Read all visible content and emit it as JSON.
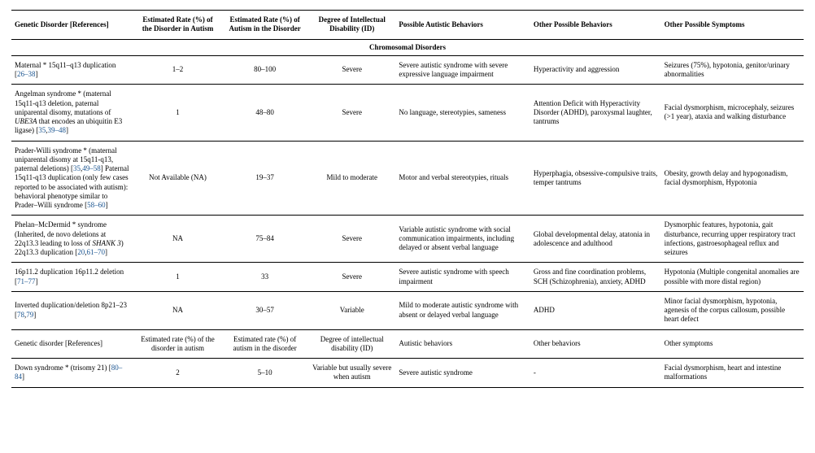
{
  "columns": [
    "Genetic Disorder\n[References]",
    "Estimated Rate (%)\nof the Disorder in\nAutism",
    "Estimated Rate (%)\nof Autism in the\nDisorder",
    "Degree of\nIntellectual\nDisability (ID)",
    "Possible Autistic Behaviors",
    "Other Possible Behaviors",
    "Other Possible Symptoms"
  ],
  "section": "Chromosomal Disorders",
  "rows": [
    {
      "disorder_html": "Maternal * 15q11–q13 duplication [<span class='ref'>26–38</span>]",
      "rate_in_autism": "1–2",
      "autism_in_disorder": "80–100",
      "id": "Severe",
      "autistic_behaviors": "Severe autistic syndrome with severe expressive language impairment",
      "other_behaviors": "Hyperactivity and aggression",
      "other_symptoms": "Seizures (75%), hypotonia, genitor/urinary abnormalities"
    },
    {
      "disorder_html": "Angelman syndrome * (maternal 15q11-q13 deletion, paternal uniparental disomy, mutations of <em>UBE3A</em> that encodes an ubiquitin E3 ligase) [<span class='ref'>35</span>,<span class='ref'>39–48</span>]",
      "rate_in_autism": "1",
      "autism_in_disorder": "48–80",
      "id": "Severe",
      "autistic_behaviors": "No language, stereotypies, sameness",
      "other_behaviors": "Attention Deficit with Hyperactivity Disorder (ADHD), paroxysmal laughter, tantrums",
      "other_symptoms": "Facial dysmorphism, microcephaly, seizures (>1 year), ataxia and walking disturbance"
    },
    {
      "disorder_html": "Prader-Willi syndrome * (maternal uniparental disomy at 15q11-q13, paternal deletions) [<span class='ref'>35</span>,<span class='ref'>49–58</span>] Paternal 15q11-q13 duplication (only few cases reported to be associated with autism): behavioral phenotype similar to Prader–Willi syndrome [<span class='ref'>58–60</span>]",
      "rate_in_autism": "Not Available (NA)",
      "autism_in_disorder": "19–37",
      "id": "Mild to moderate",
      "autistic_behaviors": "Motor and verbal stereotypies, rituals",
      "other_behaviors": "Hyperphagia, obsessive-compulsive traits, temper tantrums",
      "other_symptoms": "Obesity, growth delay and hypogonadism, facial dysmorphism, Hypotonia"
    },
    {
      "disorder_html": "Phelan–McDermid * syndrome (Inherited, de novo deletions at 22q13.3 leading to loss of <em>SHANK 3</em>) 22q13.3 duplication [<span class='ref'>20</span>,<span class='ref'>61–70</span>]",
      "rate_in_autism": "NA",
      "autism_in_disorder": "75–84",
      "id": "Severe",
      "autistic_behaviors": "Variable autistic syndrome with social communication impairments, including delayed or absent verbal language",
      "other_behaviors": "Global developmental delay, atatonia in adolescence and adulthood",
      "other_symptoms": "Dysmorphic features, hypotonia, gait disturbance, recurring upper respiratory tract infections, gastroesophageal reflux and seizures"
    },
    {
      "disorder_html": "16p11.2 duplication 16p11.2 deletion [<span class='ref'>71–77</span>]",
      "rate_in_autism": "1",
      "autism_in_disorder": "33",
      "id": "Severe",
      "autistic_behaviors": "Severe autistic syndrome with speech impairment",
      "other_behaviors": "Gross and fine coordination problems, SCH (Schizophrenia), anxiety, ADHD",
      "other_symptoms": "Hypotonia (Multiple congenital anomalies are possible with more distal region)"
    },
    {
      "disorder_html": "Inverted duplication/deletion 8p21–23 [<span class='ref'>78</span>,<span class='ref'>79</span>]",
      "rate_in_autism": "NA",
      "autism_in_disorder": "30–57",
      "id": "Variable",
      "autistic_behaviors": "Mild to moderate autistic syndrome with absent or delayed verbal language",
      "other_behaviors": "ADHD",
      "other_symptoms": "Minor facial dysmorphism, hypotonia, agenesis of the corpus callosum, possible heart defect"
    },
    {
      "disorder_html": "Genetic disorder [References]",
      "rate_in_autism": "Estimated rate (%) of the disorder in autism",
      "autism_in_disorder": "Estimated rate (%) of autism in the disorder",
      "id": "Degree of intellectual disability (ID)",
      "autistic_behaviors": "Autistic behaviors",
      "other_behaviors": "Other behaviors",
      "other_symptoms": "Other symptoms"
    },
    {
      "disorder_html": "Down syndrome * (trisomy 21) [<span class='ref'>80–84</span>]",
      "rate_in_autism": "2",
      "autism_in_disorder": "5–10",
      "id": "Variable but usually severe when autism",
      "autistic_behaviors": "Severe autistic syndrome",
      "other_behaviors": "-",
      "other_symptoms": "Facial dysmorphism, heart and intestine malformations"
    }
  ]
}
